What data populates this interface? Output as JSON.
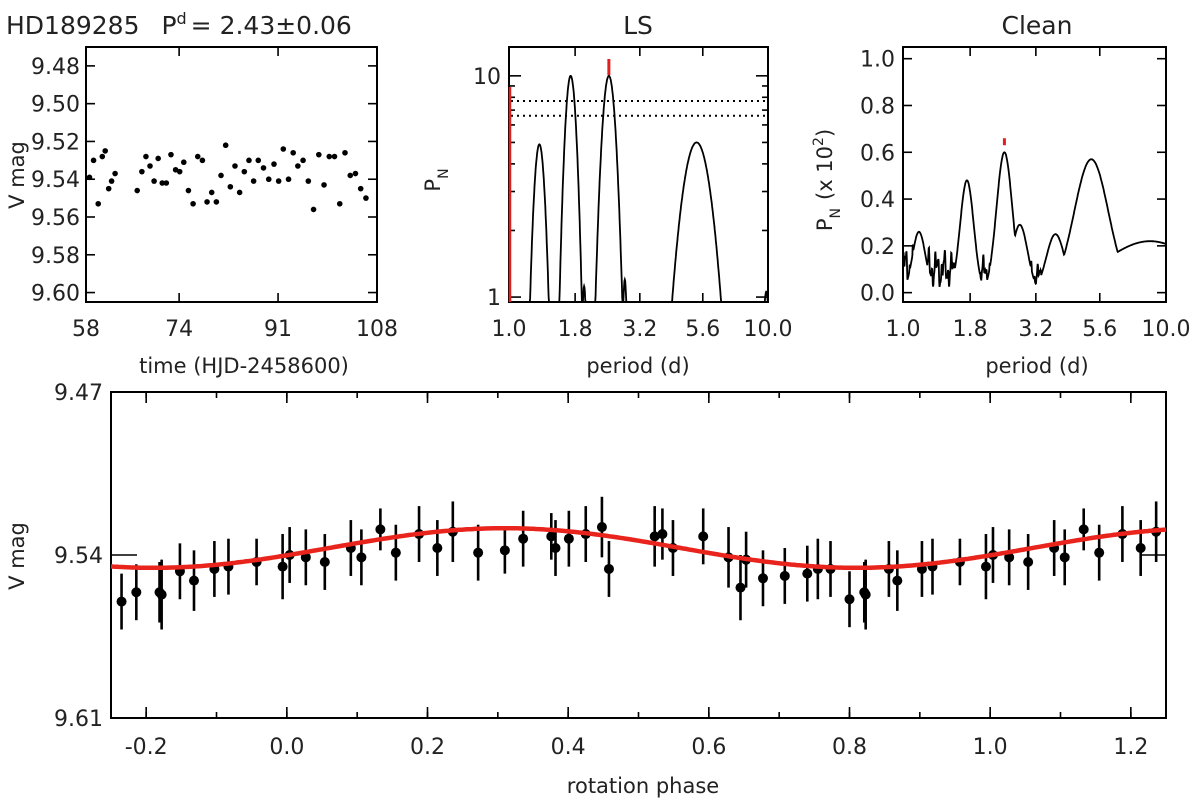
{
  "header": {
    "star": "HD189285",
    "p_symbol": "P",
    "p_sup": "d",
    "p_value": "= 2.43±0.06"
  },
  "colors": {
    "fit": "#e8241c",
    "marker": "#e02020",
    "points": "#000000"
  },
  "chart_data": [
    {
      "id": "lightcurve",
      "type": "scatter",
      "xlabel": "time (HJD-2458600)",
      "ylabel": "V mag",
      "xlim": [
        58,
        108
      ],
      "ylim": [
        9.605,
        9.47
      ],
      "y_inverted": true,
      "xticks": [
        "58",
        "74",
        "91",
        "108"
      ],
      "yticks": [
        "9.48",
        "9.50",
        "9.52",
        "9.54",
        "9.56",
        "9.58",
        "9.60"
      ],
      "x": [
        58.6,
        59.3,
        60.1,
        60.8,
        61.3,
        61.9,
        62.4,
        63.0,
        66.8,
        67.6,
        68.3,
        69.0,
        69.7,
        70.4,
        71.1,
        71.8,
        72.6,
        73.4,
        74.1,
        74.8,
        75.6,
        76.4,
        77.2,
        78.0,
        78.8,
        79.6,
        80.4,
        81.2,
        82.0,
        82.8,
        83.6,
        84.4,
        85.2,
        86.0,
        86.8,
        87.6,
        88.5,
        89.4,
        90.3,
        91.1,
        91.9,
        92.8,
        93.6,
        94.4,
        95.3,
        96.2,
        97.1,
        98.0,
        98.9,
        99.8,
        100.7,
        101.6,
        102.5,
        103.4,
        104.3,
        105.2,
        106.1
      ],
      "y": [
        9.539,
        9.53,
        9.553,
        9.528,
        9.525,
        9.545,
        9.541,
        9.537,
        9.546,
        9.536,
        9.528,
        9.533,
        9.541,
        9.529,
        9.542,
        9.542,
        9.527,
        9.535,
        9.536,
        9.531,
        9.546,
        9.553,
        9.528,
        9.53,
        9.552,
        9.547,
        9.552,
        9.538,
        9.522,
        9.544,
        9.533,
        9.547,
        9.536,
        9.53,
        9.541,
        9.53,
        9.534,
        9.54,
        9.532,
        9.541,
        9.524,
        9.54,
        9.526,
        9.533,
        9.53,
        9.541,
        9.556,
        9.527,
        9.543,
        9.528,
        9.528,
        9.553,
        9.526,
        9.538,
        9.537,
        9.545,
        9.55
      ]
    },
    {
      "id": "ls",
      "type": "line",
      "title": "LS",
      "xlabel": "period (d)",
      "ylabel": "P_N",
      "ylabel_main": "P",
      "ylabel_sub": "N",
      "y_scale": "log",
      "xlim": [
        1.0,
        10.0
      ],
      "ylim": [
        0.95,
        13.5
      ],
      "xticks": [
        "1.0",
        "1.8",
        "3.2",
        "5.6",
        "10.0"
      ],
      "yticks": [
        "1",
        "10"
      ],
      "thresholds": [
        7.7,
        6.6
      ],
      "peak_period": 2.43,
      "peaks": [
        {
          "x": 1.31,
          "y": 4.9,
          "w": 0.02
        },
        {
          "x": 1.73,
          "y": 10.0,
          "w": 0.02
        },
        {
          "x": 2.43,
          "y": 10.0,
          "w": 0.024
        },
        {
          "x": 5.3,
          "y": 5.0,
          "w": 0.052
        },
        {
          "x": 9.85,
          "y": 1.06,
          "w": 0.012
        }
      ],
      "small_bumps": [
        {
          "x": 1.95,
          "y": 1.12,
          "w": 0.008
        },
        {
          "x": 2.8,
          "y": 1.2,
          "w": 0.008
        }
      ]
    },
    {
      "id": "clean",
      "type": "line",
      "title": "Clean",
      "xlabel": "period (d)",
      "ylabel": "P_N (x 10^2)",
      "ylabel_main": "P",
      "ylabel_sub": "N",
      "ylabel_rest": "(x 10",
      "ylabel_exp": "2",
      "ylabel_close": ")",
      "xlim": [
        1.0,
        10.0
      ],
      "ylim": [
        -0.04,
        1.05
      ],
      "xticks": [
        "1.0",
        "1.8",
        "3.2",
        "5.6",
        "10.0"
      ],
      "yticks": [
        "0.0",
        "0.2",
        "0.4",
        "0.6",
        "0.8",
        "1.0"
      ],
      "peak_period": 2.43,
      "peaks": [
        {
          "x": 1.15,
          "y": 0.26,
          "w": 0.025
        },
        {
          "x": 1.75,
          "y": 0.48,
          "w": 0.026
        },
        {
          "x": 2.43,
          "y": 0.6,
          "w": 0.03
        },
        {
          "x": 2.78,
          "y": 0.29,
          "w": 0.03
        },
        {
          "x": 3.8,
          "y": 0.25,
          "w": 0.035
        },
        {
          "x": 5.2,
          "y": 0.57,
          "w": 0.065
        },
        {
          "x": 8.7,
          "y": 0.22,
          "w": 0.18
        }
      ]
    },
    {
      "id": "phase",
      "type": "scatter",
      "xlabel": "rotation phase",
      "ylabel": "V mag",
      "xlim": [
        -0.25,
        1.25
      ],
      "ylim": [
        9.61,
        9.47
      ],
      "y_inverted": true,
      "xticks": [
        "-0.2",
        "0.0",
        "0.2",
        "0.4",
        "0.6",
        "0.8",
        "1.0",
        "1.2"
      ],
      "yticks": [
        "9.47",
        "9.54",
        "9.61"
      ],
      "fit": {
        "mean": 9.537,
        "amp": 0.0085,
        "peak_phase": 0.31
      },
      "phase": [
        -0.235,
        -0.214,
        -0.181,
        -0.178,
        -0.152,
        -0.132,
        -0.103,
        -0.083,
        -0.043,
        -0.006,
        0.004,
        0.027,
        0.054,
        0.091,
        0.106,
        0.133,
        0.155,
        0.188,
        0.214,
        0.236,
        0.272,
        0.31,
        0.336,
        0.382,
        0.376,
        0.401,
        0.425,
        0.448,
        0.458,
        0.523,
        0.534,
        0.549,
        0.592,
        0.628,
        0.645,
        0.653,
        0.677,
        0.708,
        0.74,
        0.755,
        0.773,
        0.8,
        0.821,
        0.823,
        0.856,
        0.868,
        0.903,
        0.918,
        0.957,
        0.994,
        1.004,
        1.027,
        1.054,
        1.091,
        1.106,
        1.133,
        1.155,
        1.188,
        1.214,
        1.236
      ],
      "mag": [
        9.56,
        9.556,
        9.556,
        9.557,
        9.547,
        9.551,
        9.546,
        9.545,
        9.543,
        9.545,
        9.54,
        9.541,
        9.543,
        9.537,
        9.541,
        9.529,
        9.539,
        9.531,
        9.537,
        9.53,
        9.539,
        9.538,
        9.533,
        9.537,
        9.532,
        9.533,
        9.531,
        9.528,
        9.546,
        9.532,
        9.531,
        9.537,
        9.532,
        9.541,
        9.554,
        9.542,
        9.55,
        9.549,
        9.548,
        9.546,
        9.546,
        9.559,
        9.556,
        9.557,
        9.546,
        9.551,
        9.546,
        9.545,
        9.543,
        9.545,
        9.54,
        9.541,
        9.543,
        9.537,
        9.541,
        9.529,
        9.539,
        9.531,
        9.537,
        9.53
      ],
      "err": [
        0.012,
        0.012,
        0.013,
        0.015,
        0.012,
        0.013,
        0.012,
        0.012,
        0.01,
        0.014,
        0.012,
        0.012,
        0.012,
        0.012,
        0.012,
        0.009,
        0.012,
        0.012,
        0.012,
        0.013,
        0.012,
        0.01,
        0.012,
        0.012,
        0.01,
        0.012,
        0.012,
        0.013,
        0.012,
        0.013,
        0.011,
        0.012,
        0.012,
        0.013,
        0.014,
        0.012,
        0.012,
        0.012,
        0.012,
        0.013,
        0.012,
        0.012,
        0.013,
        0.015,
        0.012,
        0.013,
        0.012,
        0.012,
        0.01,
        0.014,
        0.012,
        0.012,
        0.012,
        0.012,
        0.012,
        0.009,
        0.012,
        0.012,
        0.012,
        0.013
      ]
    }
  ]
}
